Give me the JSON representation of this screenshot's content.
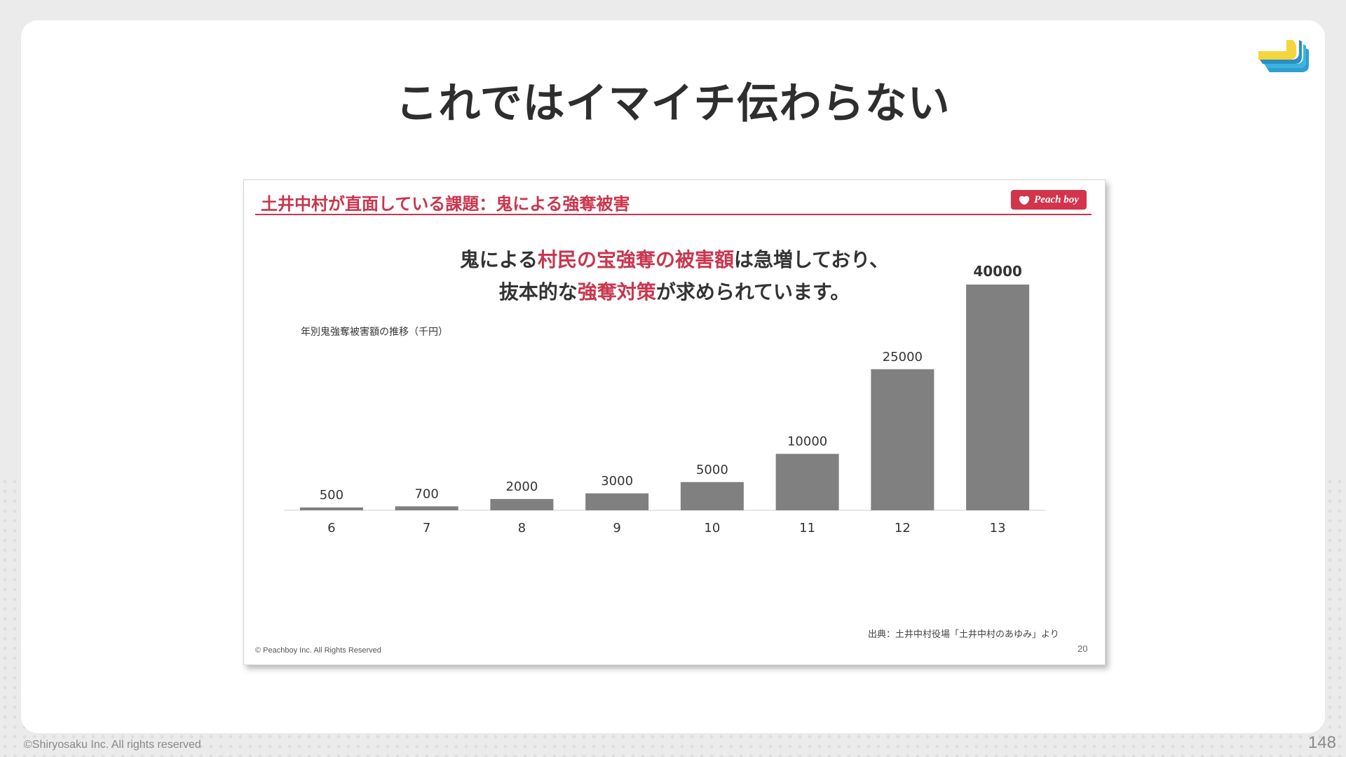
{
  "page": {
    "title": "これではイマイチ伝わらない",
    "footer": "©Shiryosaku Inc. All rights reserved",
    "page_number": "148",
    "logo_icon": "stacked-layers-icon"
  },
  "slide": {
    "heading": "土井中村が直面している課題：鬼による強奪被害",
    "badge_label": "Peach boy",
    "message_line1": {
      "pre": "鬼による",
      "highlight": "村民の宝強奪の被害額",
      "post": "は急増しており、"
    },
    "message_line2": {
      "pre": "抜本的な",
      "highlight": "強奪対策",
      "post": "が求められています。"
    },
    "source": "出典：土井中村役場「土井中村のあゆみ」より",
    "copyright": "© Peachboy Inc. All Rights Reserved",
    "slide_number": "20",
    "accent_color": "#c9364e"
  },
  "chart_data": {
    "type": "bar",
    "title": "年別鬼強奪被害額の推移（千円）",
    "categories": [
      "6",
      "7",
      "8",
      "9",
      "10",
      "11",
      "12",
      "13"
    ],
    "values": [
      500,
      700,
      2000,
      3000,
      5000,
      10000,
      25000,
      40000
    ],
    "ylim": [
      0,
      40000
    ],
    "bar_color": "#808080",
    "grid": false,
    "legend": "none"
  }
}
